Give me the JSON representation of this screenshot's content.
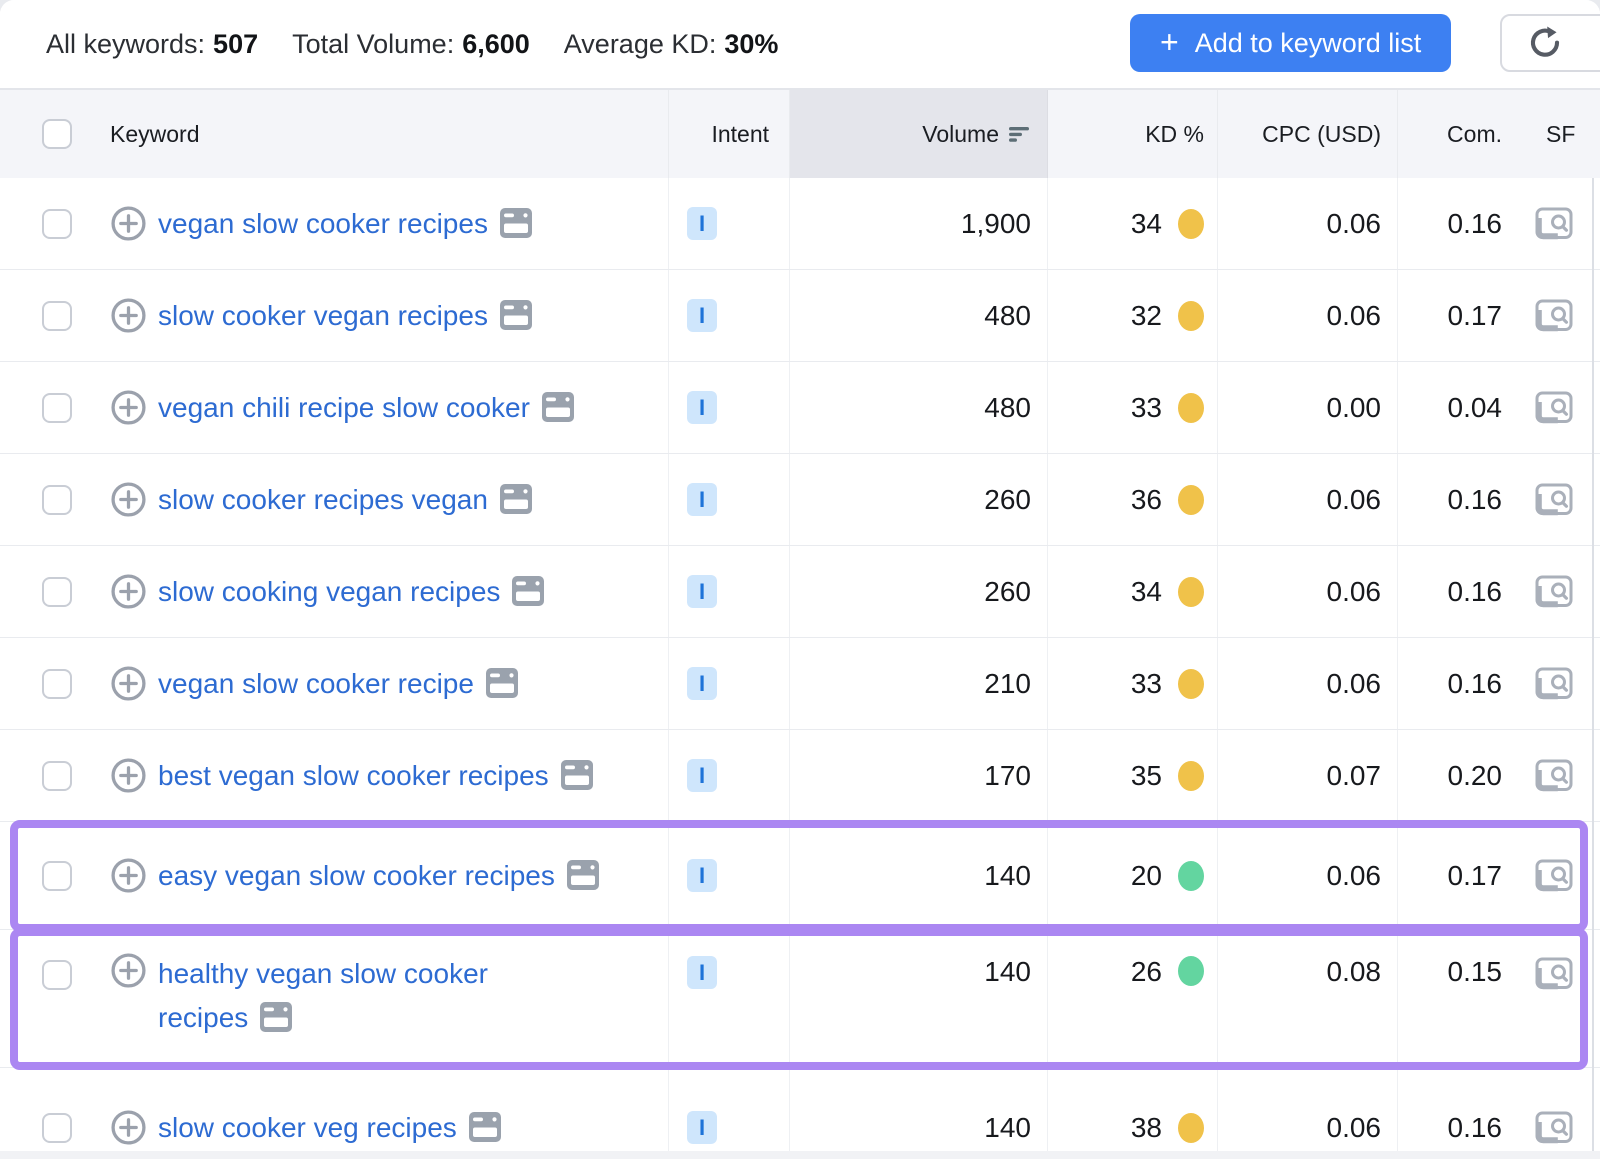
{
  "toolbar": {
    "stats": [
      {
        "label": "All keywords:",
        "value": "507"
      },
      {
        "label": "Total Volume:",
        "value": "6,600"
      },
      {
        "label": "Average KD:",
        "value": "30%"
      }
    ],
    "add_button": {
      "plus_symbol": "+",
      "label": "Add to keyword list"
    },
    "refresh_icon": "refresh-icon"
  },
  "table": {
    "headers": {
      "keyword": "Keyword",
      "intent": "Intent",
      "volume": "Volume",
      "kd": "KD %",
      "cpc": "CPC (USD)",
      "com": "Com.",
      "sf": "SF"
    },
    "sorted_column": "Volume",
    "rows": [
      {
        "keyword": "vegan slow cooker recipes",
        "intent": "I",
        "volume": "1,900",
        "kd": "34",
        "kd_color": "#f0c24a",
        "cpc": "0.06",
        "com": "0.16",
        "highlighted": false
      },
      {
        "keyword": "slow cooker vegan recipes",
        "intent": "I",
        "volume": "480",
        "kd": "32",
        "kd_color": "#f0c24a",
        "cpc": "0.06",
        "com": "0.17",
        "highlighted": false
      },
      {
        "keyword": "vegan chili recipe slow cooker",
        "intent": "I",
        "volume": "480",
        "kd": "33",
        "kd_color": "#f0c24a",
        "cpc": "0.00",
        "com": "0.04",
        "highlighted": false
      },
      {
        "keyword": "slow cooker recipes vegan",
        "intent": "I",
        "volume": "260",
        "kd": "36",
        "kd_color": "#f0c24a",
        "cpc": "0.06",
        "com": "0.16",
        "highlighted": false
      },
      {
        "keyword": "slow cooking vegan recipes",
        "intent": "I",
        "volume": "260",
        "kd": "34",
        "kd_color": "#f0c24a",
        "cpc": "0.06",
        "com": "0.16",
        "highlighted": false
      },
      {
        "keyword": "vegan slow cooker recipe",
        "intent": "I",
        "volume": "210",
        "kd": "33",
        "kd_color": "#f0c24a",
        "cpc": "0.06",
        "com": "0.16",
        "highlighted": false
      },
      {
        "keyword": "best vegan slow cooker recipes",
        "intent": "I",
        "volume": "170",
        "kd": "35",
        "kd_color": "#f0c24a",
        "cpc": "0.07",
        "com": "0.20",
        "highlighted": false
      },
      {
        "keyword": "easy vegan slow cooker recipes",
        "intent": "I",
        "volume": "140",
        "kd": "20",
        "kd_color": "#63d5a0",
        "cpc": "0.06",
        "com": "0.17",
        "highlighted": true
      },
      {
        "keyword": "healthy vegan slow cooker recipes",
        "intent": "I",
        "volume": "140",
        "kd": "26",
        "kd_color": "#63d5a0",
        "cpc": "0.08",
        "com": "0.15",
        "highlighted": true
      },
      {
        "keyword": "slow cooker veg recipes",
        "intent": "I",
        "volume": "140",
        "kd": "38",
        "kd_color": "#f0c24a",
        "cpc": "0.06",
        "com": "0.16",
        "highlighted": false
      }
    ]
  },
  "colors": {
    "accent": "#3d80f2",
    "link": "#2d6bd2",
    "purple": "#ab87f2",
    "badge_bg": "#cfe6fc",
    "badge_fg": "#1e73d8",
    "kd_yellow": "#f0c24a",
    "kd_green": "#63d5a0"
  }
}
